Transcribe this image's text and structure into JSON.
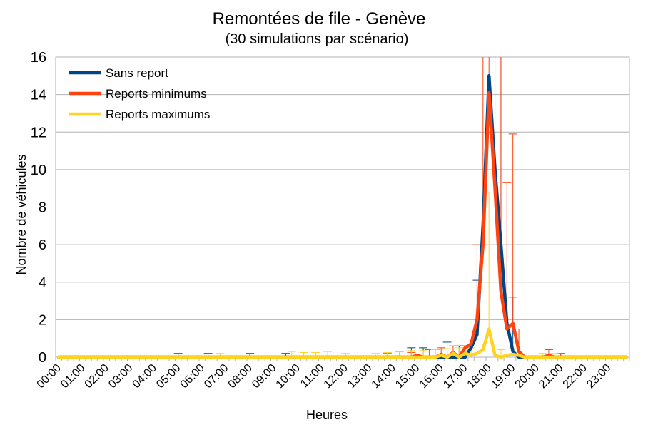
{
  "chart_data": {
    "type": "line",
    "title": "Remontées de file - Genève",
    "subtitle": "(30 simulations par scénario)",
    "xlabel": "Heures",
    "ylabel": "Nombre de véhicules",
    "ylim": [
      0,
      16
    ],
    "yticks": [
      0,
      2,
      4,
      6,
      8,
      10,
      12,
      14,
      16
    ],
    "xticks": [
      "00:00",
      "01:00",
      "02:00",
      "03:00",
      "04:00",
      "05:00",
      "06:00",
      "07:00",
      "08:00",
      "09:00",
      "10:00",
      "11:00",
      "12:00",
      "13:00",
      "14:00",
      "15:00",
      "16:00",
      "17:00",
      "18:00",
      "19:00",
      "20:00",
      "21:00",
      "22:00",
      "23:00"
    ],
    "x_start_hour": 0,
    "x_step_hours": 0.25,
    "grid": "horizontal",
    "legend_position": "top-left",
    "series": [
      {
        "name": "Sans report",
        "color": "#004586",
        "points": [
          [
            17.25,
            0.5
          ],
          [
            17.5,
            1.2
          ],
          [
            17.75,
            7
          ],
          [
            18.0,
            15
          ],
          [
            18.25,
            10
          ],
          [
            18.5,
            6
          ],
          [
            18.75,
            1.8
          ],
          [
            19.0,
            0.3
          ],
          [
            19.25,
            0
          ]
        ],
        "error_bars": [
          [
            5.0,
            0,
            0.2
          ],
          [
            6.25,
            0,
            0.2
          ],
          [
            8.0,
            0,
            0.2
          ],
          [
            9.5,
            0,
            0.2
          ],
          [
            14.25,
            0,
            0.3
          ],
          [
            14.75,
            0.1,
            0.5
          ],
          [
            15.25,
            0.1,
            0.5
          ],
          [
            15.75,
            0.15,
            0.4
          ],
          [
            16.25,
            0.2,
            0.8
          ],
          [
            16.75,
            0.2,
            0.6
          ],
          [
            17.0,
            0.3,
            0.6
          ],
          [
            17.5,
            1.2,
            4.1
          ],
          [
            18.5,
            6,
            16
          ],
          [
            19.0,
            0.3,
            3.2
          ],
          [
            21.0,
            0,
            0.2
          ]
        ]
      },
      {
        "name": "Reports minimums",
        "color": "#ff420e",
        "points": [
          [
            14.5,
            0
          ],
          [
            15.0,
            0.1
          ],
          [
            16.0,
            0.15
          ],
          [
            16.5,
            0.25
          ],
          [
            17.0,
            0.5
          ],
          [
            17.25,
            0.7
          ],
          [
            17.5,
            2
          ],
          [
            17.75,
            6
          ],
          [
            18.0,
            14.1
          ],
          [
            18.25,
            9
          ],
          [
            18.5,
            3.5
          ],
          [
            18.75,
            1.5
          ],
          [
            19.0,
            1.8
          ],
          [
            19.25,
            0.3
          ],
          [
            19.5,
            0
          ],
          [
            20.5,
            0.1
          ],
          [
            20.75,
            0
          ]
        ],
        "error_bars": [
          [
            13.75,
            0,
            0.2
          ],
          [
            14.25,
            0,
            0.3
          ],
          [
            14.75,
            0,
            0.25
          ],
          [
            15.5,
            0.1,
            0.4
          ],
          [
            16.0,
            0.15,
            0.5
          ],
          [
            16.5,
            0.25,
            0.6
          ],
          [
            17.5,
            2,
            6
          ],
          [
            17.75,
            6,
            16
          ],
          [
            18.0,
            14.1,
            16
          ],
          [
            18.25,
            9,
            16
          ],
          [
            18.5,
            3.5,
            16
          ],
          [
            18.75,
            1.5,
            9.3
          ],
          [
            19.0,
            1.8,
            11.9
          ],
          [
            19.25,
            0.3,
            1.5
          ],
          [
            20.5,
            0.1,
            0.4
          ],
          [
            21.0,
            0,
            0.2
          ]
        ]
      },
      {
        "name": "Reports maximums",
        "color": "#ffd320",
        "points": [
          [
            15.5,
            0
          ],
          [
            16.0,
            0.1
          ],
          [
            16.5,
            0.2
          ],
          [
            17.0,
            0.2
          ],
          [
            17.25,
            0.1
          ],
          [
            17.5,
            0.2
          ],
          [
            17.75,
            0.4
          ],
          [
            18.0,
            1.5
          ],
          [
            18.25,
            0.1
          ],
          [
            18.5,
            0
          ],
          [
            18.75,
            0.1
          ],
          [
            19.0,
            0.15
          ],
          [
            19.25,
            0.1
          ],
          [
            19.5,
            0
          ]
        ],
        "error_bars": [
          [
            6.75,
            0,
            0.2
          ],
          [
            9.75,
            0,
            0.3
          ],
          [
            10.25,
            0,
            0.25
          ],
          [
            10.75,
            0,
            0.25
          ],
          [
            11.25,
            0,
            0.3
          ],
          [
            12.0,
            0,
            0.2
          ],
          [
            13.25,
            0,
            0.2
          ],
          [
            13.75,
            0,
            0.25
          ],
          [
            14.25,
            0,
            0.3
          ],
          [
            14.75,
            0,
            0.35
          ],
          [
            15.25,
            0,
            0.35
          ],
          [
            15.75,
            0,
            0.4
          ],
          [
            16.25,
            0.1,
            0.45
          ],
          [
            16.75,
            0.2,
            0.5
          ],
          [
            17.25,
            0.1,
            0.5
          ],
          [
            17.75,
            0.4,
            0.7
          ],
          [
            18.0,
            1.5,
            8.8
          ],
          [
            18.5,
            0,
            0.4
          ],
          [
            19.0,
            0.15,
            0.45
          ],
          [
            20.25,
            0,
            0.2
          ],
          [
            20.75,
            0,
            0.2
          ]
        ]
      }
    ]
  }
}
